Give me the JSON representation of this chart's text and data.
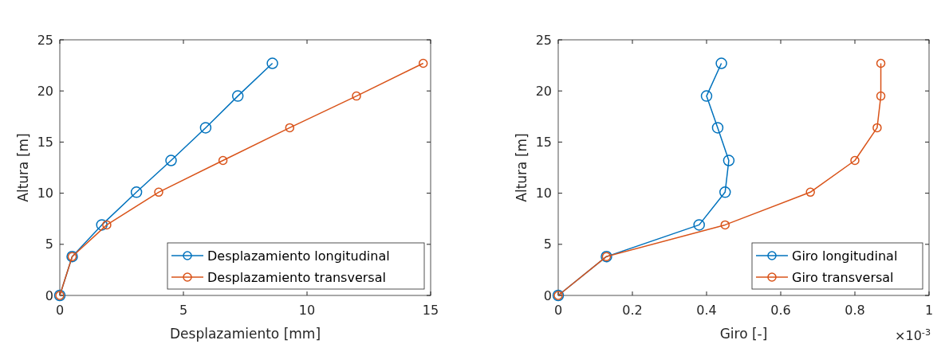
{
  "chart_data": [
    {
      "type": "line",
      "xlabel": "Desplazamiento [mm]",
      "ylabel": "Altura [m]",
      "xlim": [
        0,
        15
      ],
      "xticks": [
        0,
        5,
        10,
        15
      ],
      "ylim": [
        0,
        25
      ],
      "yticks": [
        0,
        5,
        10,
        15,
        20,
        25
      ],
      "grid": false,
      "legend": "bottom right",
      "marker": "circle",
      "line_style": "solid",
      "series": [
        {
          "name": "Desplazamiento longitudinal",
          "color": "#0072bd",
          "x": [
            0,
            0.5,
            1.7,
            3.1,
            4.5,
            5.9,
            7.2,
            8.6
          ],
          "values": [
            0,
            3.8,
            6.9,
            10.1,
            13.2,
            16.4,
            19.5,
            22.7
          ]
        },
        {
          "name": "Desplazamiento transversal",
          "color": "#d95319",
          "x": [
            0,
            0.5,
            1.9,
            4.0,
            6.6,
            9.3,
            12.0,
            14.7
          ],
          "values": [
            0,
            3.8,
            6.9,
            10.1,
            13.2,
            16.4,
            19.5,
            22.7
          ]
        }
      ]
    },
    {
      "type": "line",
      "xlabel": "Giro [-]",
      "ylabel": "Altura [m]",
      "xlim": [
        0,
        1
      ],
      "xticks": [
        0,
        0.2,
        0.4,
        0.6,
        0.8,
        1
      ],
      "ylim": [
        0,
        25
      ],
      "yticks": [
        0,
        5,
        10,
        15,
        20,
        25
      ],
      "grid": false,
      "legend": "bottom right",
      "marker": "circle",
      "line_style": "solid",
      "annotations": [
        "×10$^{-3}$"
      ],
      "series": [
        {
          "name": "Giro longitudinal",
          "color": "#0072bd",
          "x": [
            0,
            0.13,
            0.38,
            0.45,
            0.46,
            0.43,
            0.4,
            0.44
          ],
          "values": [
            0,
            3.8,
            6.9,
            10.1,
            13.2,
            16.4,
            19.5,
            22.7
          ]
        },
        {
          "name": "Giro transversal",
          "color": "#d95319",
          "x": [
            0,
            0.13,
            0.45,
            0.68,
            0.8,
            0.86,
            0.87,
            0.87
          ],
          "values": [
            0,
            3.8,
            6.9,
            10.1,
            13.2,
            16.4,
            19.5,
            22.7
          ]
        }
      ]
    }
  ]
}
